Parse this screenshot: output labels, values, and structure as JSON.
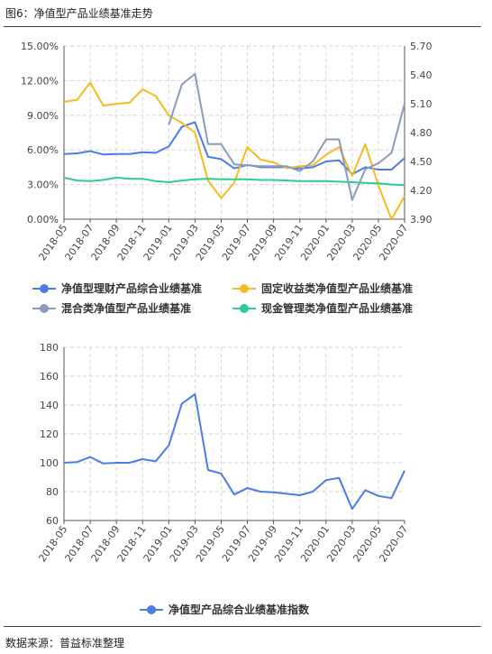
{
  "figure": {
    "title": "图6：净值型产品业绩基准走势",
    "source": "数据来源：普益标准整理"
  },
  "chart_data": [
    {
      "type": "line",
      "x": [
        "2018-05",
        "2018-06",
        "2018-07",
        "2018-08",
        "2018-09",
        "2018-10",
        "2018-11",
        "2018-12",
        "2019-01",
        "2019-02",
        "2019-03",
        "2019-04",
        "2019-05",
        "2019-06",
        "2019-07",
        "2019-08",
        "2019-09",
        "2019-10",
        "2019-11",
        "2019-12",
        "2020-01",
        "2020-02",
        "2020-03",
        "2020-04",
        "2020-05",
        "2020-06",
        "2020-07"
      ],
      "x_tick_labels": [
        "2018-05",
        "2018-07",
        "2018-09",
        "2018-11",
        "2019-01",
        "2019-03",
        "2019-05",
        "2019-07",
        "2019-09",
        "2019-11",
        "2020-01",
        "2020-03",
        "2020-05",
        "2020-07"
      ],
      "y_left_ticks": [
        "0.00%",
        "3.00%",
        "6.00%",
        "9.00%",
        "12.00%",
        "15.00%"
      ],
      "ylim_left": [
        0,
        15
      ],
      "y_right_ticks": [
        "3.90",
        "4.20",
        "4.50",
        "4.80",
        "5.10",
        "5.40",
        "5.70"
      ],
      "ylim_right": [
        3.9,
        5.7
      ],
      "grid": true,
      "legend_position": "bottom",
      "series": [
        {
          "name": "净值型理财产品综合业绩基准",
          "axis": "left",
          "color": "#4a7de8",
          "values": [
            5.65,
            5.7,
            5.9,
            5.6,
            5.65,
            5.65,
            5.8,
            5.75,
            6.3,
            8.0,
            8.4,
            5.4,
            5.2,
            4.4,
            4.7,
            4.5,
            4.5,
            4.5,
            4.4,
            4.5,
            5.0,
            5.1,
            3.9,
            4.5,
            4.3,
            4.3,
            5.3
          ]
        },
        {
          "name": "固定收益类净值型产品业绩基准",
          "axis": "right",
          "color": "#f7bb22",
          "values": [
            5.12,
            5.14,
            5.32,
            5.08,
            5.1,
            5.11,
            5.25,
            5.18,
            4.98,
            4.9,
            4.8,
            4.3,
            4.12,
            4.28,
            4.65,
            4.52,
            4.49,
            4.43,
            4.45,
            4.46,
            4.57,
            4.65,
            4.35,
            4.68,
            4.25,
            3.9,
            4.14
          ]
        },
        {
          "name": "混合类净值型产品业绩基准",
          "axis": "right",
          "color": "#8a9bbd",
          "values": [
            null,
            null,
            null,
            null,
            null,
            null,
            null,
            null,
            4.88,
            5.3,
            5.41,
            4.68,
            4.68,
            4.47,
            4.46,
            4.45,
            4.45,
            4.45,
            4.4,
            4.5,
            4.73,
            4.73,
            4.1,
            4.42,
            4.48,
            4.59,
            5.1
          ]
        },
        {
          "name": "现金管理类净值型产品业绩基准",
          "axis": "left",
          "color": "#2ecc91",
          "values": [
            3.6,
            3.35,
            3.3,
            3.4,
            3.6,
            3.5,
            3.5,
            3.3,
            3.2,
            3.35,
            3.45,
            3.5,
            3.45,
            3.45,
            3.45,
            3.4,
            3.4,
            3.35,
            3.3,
            3.3,
            3.3,
            3.25,
            3.2,
            3.15,
            3.1,
            3.0,
            2.95
          ]
        }
      ]
    },
    {
      "type": "line",
      "x": [
        "2018-05",
        "2018-06",
        "2018-07",
        "2018-08",
        "2018-09",
        "2018-10",
        "2018-11",
        "2018-12",
        "2019-01",
        "2019-02",
        "2019-03",
        "2019-04",
        "2019-05",
        "2019-06",
        "2019-07",
        "2019-08",
        "2019-09",
        "2019-10",
        "2019-11",
        "2019-12",
        "2020-01",
        "2020-02",
        "2020-03",
        "2020-04",
        "2020-05",
        "2020-06",
        "2020-07"
      ],
      "x_tick_labels": [
        "2018-05",
        "2018-07",
        "2018-09",
        "2018-11",
        "2019-01",
        "2019-03",
        "2019-05",
        "2019-07",
        "2019-09",
        "2019-11",
        "2020-01",
        "2020-03",
        "2020-05",
        "2020-07"
      ],
      "y_ticks": [
        "60",
        "80",
        "100",
        "120",
        "140",
        "160",
        "180"
      ],
      "ylim": [
        60,
        180
      ],
      "grid": true,
      "legend_position": "bottom",
      "series": [
        {
          "name": "净值型产品综合业绩基准指数",
          "color": "#4a7de8",
          "values": [
            100,
            100.5,
            104,
            99.5,
            100,
            100,
            102.5,
            101,
            112,
            141,
            147.5,
            95,
            92.5,
            78,
            82.5,
            80,
            79.5,
            78.5,
            77.5,
            80,
            88,
            89.5,
            68,
            81,
            77,
            75.5,
            94.5
          ]
        }
      ]
    }
  ]
}
